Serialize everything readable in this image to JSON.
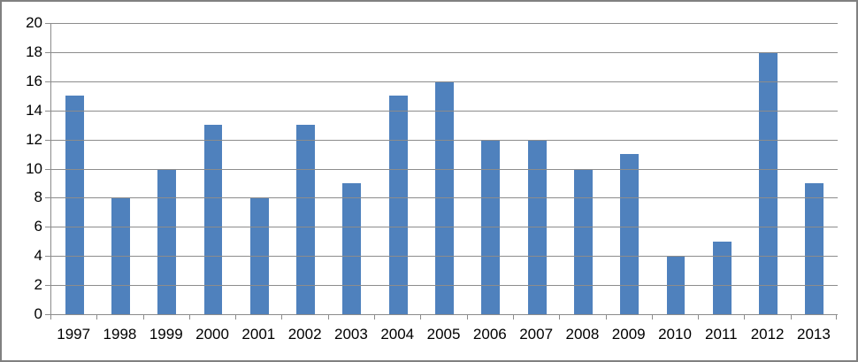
{
  "chart_data": {
    "type": "bar",
    "title": "",
    "xlabel": "",
    "ylabel": "",
    "categories": [
      "1997",
      "1998",
      "1999",
      "2000",
      "2001",
      "2002",
      "2003",
      "2004",
      "2005",
      "2006",
      "2007",
      "2008",
      "2009",
      "2010",
      "2011",
      "2012",
      "2013"
    ],
    "values": [
      15,
      8,
      10,
      13,
      8,
      13,
      9,
      15,
      16,
      12,
      12,
      10,
      11,
      4,
      5,
      18,
      9
    ],
    "ylim": [
      0,
      20
    ],
    "yticks": [
      0,
      2,
      4,
      6,
      8,
      10,
      12,
      14,
      16,
      18,
      20
    ],
    "grid": true,
    "legend": false,
    "bar_gap_fraction": 0.4,
    "colors": {
      "bar": "#4F81BD",
      "gridline": "#8c8c8c",
      "axis": "#8c8c8c",
      "label": "#000000",
      "frame_border": "#808080",
      "background": "#ffffff"
    }
  }
}
